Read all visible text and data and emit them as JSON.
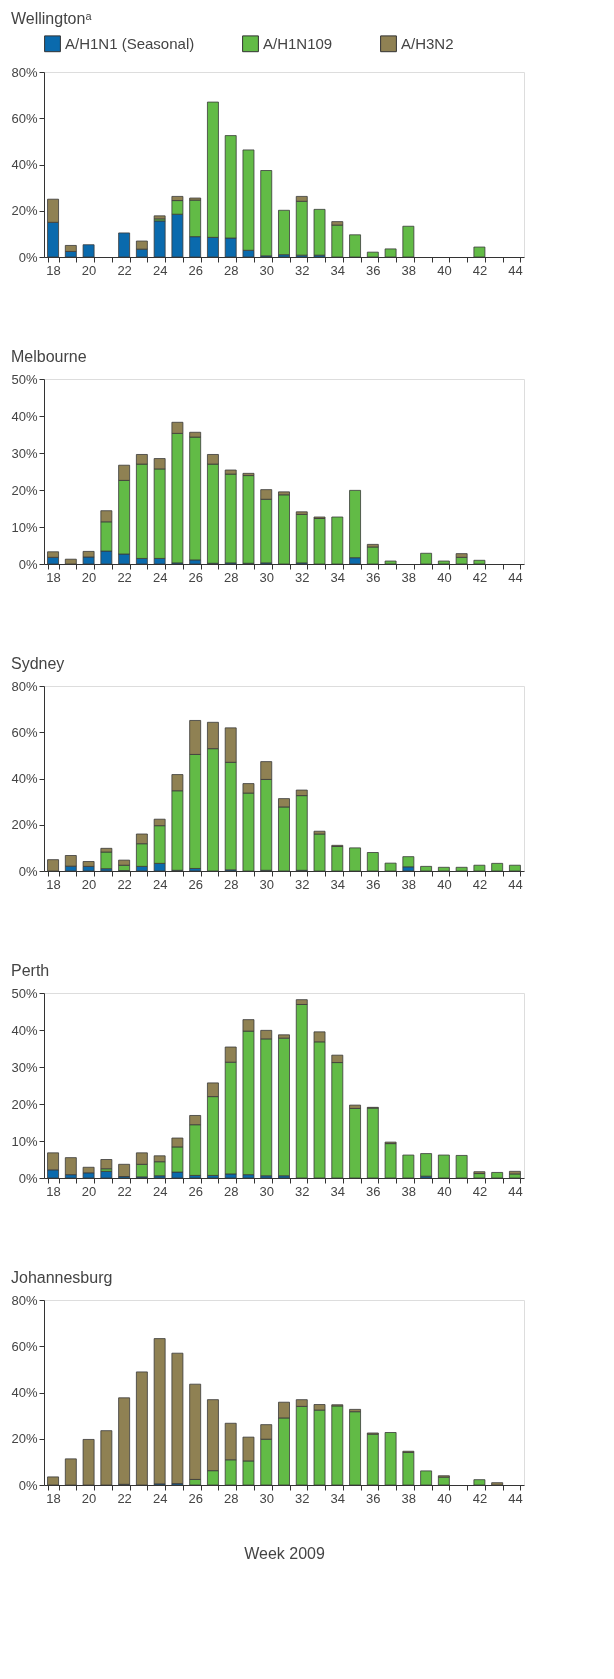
{
  "chart_data": [
    {
      "type": "bar",
      "title": "Wellingtonᵃ",
      "stacked": true,
      "legend": "top",
      "categories": [
        "18",
        null,
        "20",
        null,
        "22",
        null,
        "24",
        null,
        "26",
        null,
        "28",
        null,
        "30",
        null,
        "32",
        null,
        "34",
        null,
        "36",
        null,
        "38",
        null,
        "40",
        null,
        "42",
        null,
        "44"
      ],
      "series": [
        {
          "name": "A/H1N1 (Seasonal)",
          "color": "#0a6aad",
          "values": [
            15,
            2.4,
            5.3,
            0,
            10.4,
            3.4,
            15.6,
            18.5,
            8.8,
            8.5,
            8.2,
            2.9,
            0.5,
            1,
            0.8,
            0.8,
            0,
            0,
            0,
            0,
            0,
            0,
            0,
            0,
            0,
            0,
            0
          ]
        },
        {
          "name": "A/H1N109",
          "color": "#62bb46",
          "values": [
            0,
            0,
            0,
            0,
            0,
            0,
            0.9,
            5.9,
            15.8,
            58.5,
            44.3,
            43.4,
            36.9,
            19.2,
            23.3,
            19.8,
            13.8,
            9.6,
            2.1,
            3.5,
            13.3,
            0,
            0,
            0,
            4.3,
            0,
            0
          ]
        },
        {
          "name": "A/H3N2",
          "color": "#8f8153",
          "values": [
            10,
            2.6,
            0,
            0,
            0,
            3.5,
            1.3,
            1.8,
            0.9,
            0,
            0,
            0,
            0,
            0,
            2.1,
            0,
            1.5,
            0,
            0,
            0,
            0,
            0,
            0,
            0,
            0,
            0,
            0
          ]
        }
      ],
      "ylim": [
        0,
        80
      ],
      "yticks": [
        {
          "value": 0,
          "label": "0%"
        },
        {
          "value": 20,
          "label": "20%"
        },
        {
          "value": 40,
          "label": "40%"
        },
        {
          "value": 60,
          "label": "60%"
        },
        {
          "value": 80,
          "label": "80%"
        }
      ]
    },
    {
      "type": "bar",
      "title": "Melbourne",
      "stacked": true,
      "categories": [
        "18",
        null,
        "20",
        null,
        "22",
        null,
        "24",
        null,
        "26",
        null,
        "28",
        null,
        "30",
        null,
        "32",
        null,
        "34",
        null,
        "36",
        null,
        "38",
        null,
        "40",
        null,
        "42",
        null,
        "44"
      ],
      "series": [
        {
          "color": "#0a6aad",
          "values": [
            1.8,
            0,
            1.9,
            3.5,
            2.7,
            1.5,
            1.5,
            0.3,
            1.1,
            0.2,
            0.3,
            0.2,
            0.3,
            0,
            0.3,
            0,
            0,
            1.7,
            0,
            0,
            0,
            0,
            0,
            0,
            0,
            0,
            0
          ]
        },
        {
          "color": "#62bb46",
          "values": [
            0,
            0,
            0,
            7.9,
            19.9,
            25.5,
            24.2,
            35.0,
            33.2,
            26.8,
            24.0,
            23.7,
            17.2,
            18.7,
            13.1,
            12.3,
            12.7,
            18.2,
            4.6,
            0.8,
            0,
            2.9,
            0.8,
            1.8,
            1.0,
            0,
            0
          ]
        },
        {
          "color": "#8f8153",
          "values": [
            1.5,
            1.3,
            1.5,
            3,
            4.1,
            2.6,
            2.8,
            3,
            1.3,
            2.6,
            1.1,
            0.6,
            2.6,
            0.8,
            0.7,
            0.4,
            0,
            0,
            0.7,
            0,
            0,
            0,
            0,
            1.0,
            0,
            0,
            0
          ]
        }
      ],
      "ylim": [
        0,
        50
      ],
      "yticks": [
        {
          "value": 0,
          "label": "0%"
        },
        {
          "value": 10,
          "label": "10%"
        },
        {
          "value": 20,
          "label": "20%"
        },
        {
          "value": 30,
          "label": "30%"
        },
        {
          "value": 40,
          "label": "40%"
        },
        {
          "value": 50,
          "label": "50%"
        }
      ]
    },
    {
      "type": "bar",
      "title": "Sydney",
      "stacked": true,
      "categories": [
        "18",
        null,
        "20",
        null,
        "22",
        null,
        "24",
        null,
        "26",
        null,
        "28",
        null,
        "30",
        null,
        "32",
        null,
        "34",
        null,
        "36",
        null,
        "38",
        null,
        "40",
        null,
        "42",
        null,
        "44"
      ],
      "series": [
        {
          "color": "#0a6aad",
          "values": [
            0,
            2.1,
            2.0,
            1.0,
            0.2,
            2.0,
            3.3,
            0.3,
            1.1,
            0,
            0.5,
            0,
            0.3,
            0,
            0.3,
            0,
            0,
            0,
            0,
            0,
            1.8,
            0,
            0,
            0,
            0,
            0,
            0
          ]
        },
        {
          "color": "#62bb46",
          "values": [
            0,
            0,
            0,
            7.2,
            2.3,
            9.8,
            16.3,
            34.4,
            49.3,
            52.9,
            46.5,
            33.7,
            39.3,
            27.7,
            32.3,
            16.0,
            10.6,
            10.0,
            8.0,
            3.4,
            4.4,
            2.0,
            1.6,
            1.6,
            2.5,
            3.3,
            2.5
          ]
        },
        {
          "color": "#8f8153",
          "values": [
            4.9,
            4.6,
            2.1,
            1.6,
            2.2,
            4.2,
            2.8,
            7.0,
            14.7,
            11.4,
            14.9,
            4.1,
            7.7,
            3.6,
            2.4,
            1.2,
            0.5,
            0,
            0,
            0,
            0,
            0,
            0,
            0,
            0,
            0,
            0
          ]
        }
      ],
      "ylim": [
        0,
        80
      ],
      "yticks": [
        {
          "value": 0,
          "label": "0%"
        },
        {
          "value": 20,
          "label": "20%"
        },
        {
          "value": 40,
          "label": "40%"
        },
        {
          "value": 60,
          "label": "60%"
        },
        {
          "value": 80,
          "label": "80%"
        }
      ]
    },
    {
      "type": "bar",
      "title": "Perth",
      "stacked": true,
      "categories": [
        "18",
        null,
        "20",
        null,
        "22",
        null,
        "24",
        null,
        "26",
        null,
        "28",
        null,
        "30",
        null,
        "32",
        null,
        "34",
        null,
        "36",
        null,
        "38",
        null,
        "40",
        null,
        "42",
        null,
        "44"
      ],
      "series": [
        {
          "color": "#0a6aad",
          "values": [
            2.2,
            0.9,
            1.4,
            1.8,
            0.4,
            0.3,
            0.6,
            1.6,
            0.7,
            0.7,
            1.1,
            0.9,
            0.6,
            0.6,
            0,
            0,
            0,
            0,
            0,
            0,
            0,
            0.5,
            0,
            0,
            0,
            0,
            0
          ]
        },
        {
          "color": "#62bb46",
          "values": [
            0,
            0,
            0,
            0.7,
            0,
            3.4,
            3.8,
            6.8,
            13.7,
            21.3,
            30.2,
            38.8,
            37.0,
            37.2,
            46.9,
            36.8,
            31.2,
            18.8,
            18.9,
            9.3,
            6.2,
            6.1,
            6.2,
            6.1,
            1.2,
            1.5,
            1.1
          ]
        },
        {
          "color": "#8f8153",
          "values": [
            4.6,
            4.6,
            1.5,
            2.5,
            3.3,
            3.1,
            1.6,
            2.4,
            2.5,
            3.7,
            4.1,
            3.1,
            2.3,
            0.9,
            1.3,
            2.7,
            2.0,
            0.9,
            0.2,
            0.4,
            0,
            0,
            0,
            0,
            0.5,
            0,
            0.7
          ]
        }
      ],
      "ylim": [
        0,
        50
      ],
      "yticks": [
        {
          "value": 0,
          "label": "0%"
        },
        {
          "value": 10,
          "label": "10%"
        },
        {
          "value": 20,
          "label": "20%"
        },
        {
          "value": 30,
          "label": "30%"
        },
        {
          "value": 40,
          "label": "40%"
        },
        {
          "value": 50,
          "label": "50%"
        }
      ]
    },
    {
      "type": "bar",
      "title": "Johannesburg",
      "stacked": true,
      "xlabel": "Week 2009",
      "categories": [
        "18",
        null,
        "20",
        null,
        "22",
        null,
        "24",
        null,
        "26",
        null,
        "28",
        null,
        "30",
        null,
        "32",
        null,
        "34",
        null,
        "36",
        null,
        "38",
        null,
        "40",
        null,
        "42",
        null,
        "44"
      ],
      "series": [
        {
          "color": "#0a6aad",
          "values": [
            0,
            0,
            0,
            0,
            0.3,
            0,
            0.5,
            0.6,
            0,
            0,
            0,
            0,
            0,
            0,
            0,
            0,
            0,
            0,
            0,
            0,
            0,
            0,
            0,
            0,
            0,
            0,
            0
          ]
        },
        {
          "color": "#62bb46",
          "values": [
            0,
            0,
            0,
            0,
            0,
            0,
            0,
            0,
            2.4,
            6.2,
            10.9,
            10.4,
            19.8,
            29.0,
            34.0,
            32.4,
            34.2,
            31.7,
            22.0,
            22.7,
            14.1,
            6.1,
            3.4,
            0,
            2.3,
            0,
            0
          ]
        },
        {
          "color": "#8f8153",
          "values": [
            3.5,
            11.3,
            19.7,
            23.5,
            37.4,
            48.9,
            62.8,
            56.4,
            41.2,
            30.7,
            15.8,
            10.3,
            6.3,
            6.8,
            2.9,
            2.4,
            0.5,
            1.0,
            0.5,
            0,
            0.5,
            0,
            0.6,
            0,
            0,
            1.0,
            0
          ]
        }
      ],
      "ylim": [
        0,
        80
      ],
      "yticks": [
        {
          "value": 0,
          "label": "0%"
        },
        {
          "value": 20,
          "label": "20%"
        },
        {
          "value": 40,
          "label": "40%"
        },
        {
          "value": 60,
          "label": "60%"
        },
        {
          "value": 80,
          "label": "80%"
        }
      ]
    }
  ]
}
